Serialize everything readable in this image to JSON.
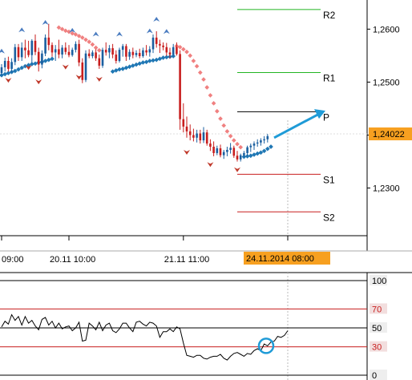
{
  "colors": {
    "pivot_resistance": "#22b522",
    "pivot_support": "#c81e1e",
    "pivot_p": "#000000",
    "bull_candle": "#1a5fa0",
    "bear_candle": "#c81e1e",
    "psar_down": "#f08080",
    "psar_up": "#1f77b4",
    "arrow": "#1f9bd7",
    "price_tag_bg": "#f7a020",
    "rsi_line": "#000000",
    "rsi_band": "#c81e1e",
    "axis": "#888888"
  },
  "chart_data": [
    {
      "type": "candlestick",
      "title": "",
      "ylim": [
        1.221,
        1.2655
      ],
      "y_ticks": [
        "1,2600",
        "1,2500",
        "1,2400",
        "1,2300"
      ],
      "y_tick_values": [
        1.26,
        1.25,
        1.24,
        1.23
      ],
      "x_ticks": [
        "09:00",
        "20.11 10:00",
        "21.11 11:00",
        "24.11.2014 08:00"
      ],
      "x_tick_index": [
        0,
        20,
        54,
        85
      ],
      "current_price": 1.24022,
      "current_price_label": "1,24022",
      "pivots": [
        {
          "label": "R2",
          "value": 1.2637
        },
        {
          "label": "R1",
          "value": 1.2518
        },
        {
          "label": "P",
          "value": 1.2444
        },
        {
          "label": "S1",
          "value": 1.2326
        },
        {
          "label": "S2",
          "value": 1.2255
        }
      ],
      "candles_ohlc": [
        [
          1.2517,
          1.2534,
          1.2512,
          1.2528
        ],
        [
          1.2528,
          1.2546,
          1.252,
          1.254
        ],
        [
          1.254,
          1.2548,
          1.252,
          1.2525
        ],
        [
          1.2525,
          1.2545,
          1.2518,
          1.2538
        ],
        [
          1.2538,
          1.2572,
          1.2532,
          1.2566
        ],
        [
          1.2566,
          1.2572,
          1.254,
          1.2547
        ],
        [
          1.2547,
          1.2575,
          1.254,
          1.2565
        ],
        [
          1.2565,
          1.258,
          1.2545,
          1.256
        ],
        [
          1.256,
          1.2578,
          1.2547,
          1.2551
        ],
        [
          1.2551,
          1.2581,
          1.2536,
          1.2578
        ],
        [
          1.2578,
          1.259,
          1.2551,
          1.2557
        ],
        [
          1.2557,
          1.2565,
          1.252,
          1.2533
        ],
        [
          1.2533,
          1.256,
          1.2526,
          1.2554
        ],
        [
          1.2554,
          1.259,
          1.2549,
          1.2584
        ],
        [
          1.2584,
          1.261,
          1.256,
          1.257
        ],
        [
          1.257,
          1.2575,
          1.2548,
          1.2556
        ],
        [
          1.2556,
          1.257,
          1.254,
          1.2562
        ],
        [
          1.2562,
          1.258,
          1.2545,
          1.2552
        ],
        [
          1.2552,
          1.257,
          1.2545,
          1.2565
        ],
        [
          1.2565,
          1.2575,
          1.2552,
          1.2557
        ],
        [
          1.2557,
          1.257,
          1.2547,
          1.2551
        ],
        [
          1.2551,
          1.2565,
          1.2548,
          1.2561
        ],
        [
          1.2561,
          1.2577,
          1.2556,
          1.2572
        ],
        [
          1.2572,
          1.258,
          1.253,
          1.2537
        ],
        [
          1.2537,
          1.2545,
          1.2498,
          1.2504
        ],
        [
          1.2504,
          1.256,
          1.25,
          1.2554
        ],
        [
          1.2554,
          1.2562,
          1.2545,
          1.2549
        ],
        [
          1.2549,
          1.256,
          1.2545,
          1.2556
        ],
        [
          1.2556,
          1.2562,
          1.254,
          1.2545
        ],
        [
          1.2545,
          1.2552,
          1.2525,
          1.2531
        ],
        [
          1.2531,
          1.2565,
          1.2527,
          1.2561
        ],
        [
          1.2561,
          1.2575,
          1.255,
          1.2556
        ],
        [
          1.2556,
          1.257,
          1.2545,
          1.2564
        ],
        [
          1.2564,
          1.2572,
          1.2545,
          1.2552
        ],
        [
          1.2552,
          1.256,
          1.2535,
          1.254
        ],
        [
          1.254,
          1.2565,
          1.2537,
          1.2561
        ],
        [
          1.2561,
          1.2572,
          1.2548,
          1.2568
        ],
        [
          1.2568,
          1.2572,
          1.254,
          1.2548
        ],
        [
          1.2548,
          1.2562,
          1.2542,
          1.2557
        ],
        [
          1.2557,
          1.2565,
          1.2545,
          1.2551
        ],
        [
          1.2551,
          1.256,
          1.2547,
          1.2555
        ],
        [
          1.2555,
          1.2563,
          1.2545,
          1.2549
        ],
        [
          1.2549,
          1.2565,
          1.2546,
          1.256
        ],
        [
          1.256,
          1.257,
          1.255,
          1.2556
        ],
        [
          1.2556,
          1.2568,
          1.2548,
          1.2562
        ],
        [
          1.2562,
          1.259,
          1.2555,
          1.2584
        ],
        [
          1.2584,
          1.2596,
          1.2565,
          1.2572
        ],
        [
          1.2572,
          1.258,
          1.2555,
          1.2569
        ],
        [
          1.2569,
          1.2575,
          1.256,
          1.2566
        ],
        [
          1.2566,
          1.2574,
          1.255,
          1.2556
        ],
        [
          1.2556,
          1.2565,
          1.2545,
          1.2552
        ],
        [
          1.2552,
          1.2572,
          1.2548,
          1.2566
        ],
        [
          1.2566,
          1.2575,
          1.255,
          1.2553
        ],
        [
          1.2553,
          1.256,
          1.241,
          1.243
        ],
        [
          1.243,
          1.246,
          1.2405,
          1.2416
        ],
        [
          1.2416,
          1.2435,
          1.2395,
          1.2407
        ],
        [
          1.2407,
          1.242,
          1.239,
          1.24
        ],
        [
          1.24,
          1.2412,
          1.2388,
          1.2395
        ],
        [
          1.2395,
          1.241,
          1.2386,
          1.2403
        ],
        [
          1.2403,
          1.241,
          1.2384,
          1.239
        ],
        [
          1.239,
          1.2415,
          1.2385,
          1.2405
        ],
        [
          1.2405,
          1.241,
          1.238,
          1.2384
        ],
        [
          1.2384,
          1.2392,
          1.237,
          1.2378
        ],
        [
          1.2378,
          1.2388,
          1.236,
          1.2366
        ],
        [
          1.2366,
          1.238,
          1.2362,
          1.2375
        ],
        [
          1.2375,
          1.2382,
          1.2358,
          1.2362
        ],
        [
          1.2362,
          1.2372,
          1.2355,
          1.2368
        ],
        [
          1.2368,
          1.2378,
          1.236,
          1.2372
        ],
        [
          1.2372,
          1.2385,
          1.2365,
          1.2376
        ],
        [
          1.2376,
          1.238,
          1.2357,
          1.2361
        ],
        [
          1.2361,
          1.237,
          1.235,
          1.2354
        ],
        [
          1.2354,
          1.2365,
          1.235,
          1.2362
        ],
        [
          1.2362,
          1.237,
          1.2358,
          1.2366
        ],
        [
          1.2366,
          1.238,
          1.236,
          1.2377
        ],
        [
          1.2377,
          1.2384,
          1.2368,
          1.238
        ],
        [
          1.238,
          1.2388,
          1.2372,
          1.2384
        ],
        [
          1.2384,
          1.2392,
          1.2378,
          1.2386
        ],
        [
          1.2386,
          1.2394,
          1.238,
          1.239
        ],
        [
          1.239,
          1.2398,
          1.2384,
          1.2392
        ],
        [
          1.2392,
          1.2402,
          1.2386,
          1.2398
        ]
      ],
      "psar_down": [
        [
          17,
          1.2603
        ],
        [
          18,
          1.26
        ],
        [
          19,
          1.2597
        ],
        [
          20,
          1.2595
        ],
        [
          21,
          1.2592
        ],
        [
          22,
          1.259
        ],
        [
          23,
          1.2587
        ],
        [
          24,
          1.2584
        ],
        [
          25,
          1.258
        ],
        [
          26,
          1.2576
        ],
        [
          27,
          1.2571
        ],
        [
          28,
          1.2565
        ],
        [
          29,
          1.256
        ],
        [
          52,
          1.2568
        ],
        [
          53,
          1.2566
        ],
        [
          54,
          1.2562
        ],
        [
          55,
          1.2557
        ],
        [
          56,
          1.255
        ],
        [
          57,
          1.254
        ],
        [
          58,
          1.253
        ],
        [
          59,
          1.2518
        ],
        [
          60,
          1.2505
        ],
        [
          61,
          1.249
        ],
        [
          62,
          1.2475
        ],
        [
          63,
          1.246
        ],
        [
          64,
          1.2445
        ],
        [
          65,
          1.2431
        ],
        [
          66,
          1.2418
        ],
        [
          67,
          1.2407
        ],
        [
          68,
          1.2398
        ],
        [
          69,
          1.239
        ],
        [
          70,
          1.2383
        ],
        [
          71,
          1.2377
        ]
      ],
      "psar_up": [
        [
          0,
          1.2513
        ],
        [
          1,
          1.2515
        ],
        [
          2,
          1.2517
        ],
        [
          3,
          1.2519
        ],
        [
          4,
          1.2521
        ],
        [
          5,
          1.2524
        ],
        [
          6,
          1.2527
        ],
        [
          7,
          1.253
        ],
        [
          8,
          1.2532
        ],
        [
          9,
          1.2534
        ],
        [
          10,
          1.2535
        ],
        [
          11,
          1.2537
        ],
        [
          12,
          1.2538
        ],
        [
          13,
          1.254
        ],
        [
          14,
          1.2542
        ],
        [
          15,
          1.2544
        ],
        [
          33,
          1.252
        ],
        [
          34,
          1.2522
        ],
        [
          35,
          1.2524
        ],
        [
          36,
          1.2525
        ],
        [
          37,
          1.2527
        ],
        [
          38,
          1.2529
        ],
        [
          39,
          1.2531
        ],
        [
          40,
          1.2533
        ],
        [
          41,
          1.2535
        ],
        [
          42,
          1.2537
        ],
        [
          43,
          1.2538
        ],
        [
          44,
          1.254
        ],
        [
          45,
          1.2541
        ],
        [
          46,
          1.2542
        ],
        [
          47,
          1.2544
        ],
        [
          48,
          1.2546
        ],
        [
          49,
          1.2547
        ],
        [
          50,
          1.2548
        ],
        [
          51,
          1.2549
        ],
        [
          72,
          1.2359
        ],
        [
          73,
          1.236
        ],
        [
          74,
          1.2361
        ],
        [
          75,
          1.2363
        ],
        [
          76,
          1.2365
        ],
        [
          77,
          1.2367
        ],
        [
          78,
          1.237
        ],
        [
          79,
          1.2374
        ],
        [
          80,
          1.2378
        ]
      ],
      "fractals_up": [
        [
          0,
          1.2548
        ],
        [
          6,
          1.2588
        ],
        [
          13,
          1.2602
        ],
        [
          21,
          1.2587
        ],
        [
          28,
          1.258
        ],
        [
          35,
          1.258
        ],
        [
          44,
          1.2586
        ],
        [
          46,
          1.2608
        ],
        [
          49,
          1.2585
        ]
      ],
      "fractals_down": [
        [
          2,
          1.2514
        ],
        [
          8,
          1.2538
        ],
        [
          11,
          1.2511
        ],
        [
          19,
          1.2539
        ],
        [
          23,
          1.252
        ],
        [
          29,
          1.2516
        ],
        [
          55,
          1.2378
        ],
        [
          62,
          1.2355
        ],
        [
          70,
          1.2345
        ]
      ],
      "forecast_arrow": [
        [
          80,
          1.2395
        ],
        [
          89,
          1.2446
        ]
      ]
    },
    {
      "type": "line",
      "title": "",
      "ylim": [
        0,
        100
      ],
      "y_ticks": [
        "100",
        "70",
        "50",
        "30",
        "0"
      ],
      "y_tick_values": [
        100,
        70,
        50,
        30,
        0
      ],
      "bands": [
        70,
        30
      ],
      "series": [
        {
          "values": [
            51,
            57,
            54,
            64,
            58,
            62,
            53,
            62,
            55,
            58,
            52,
            48,
            59,
            61,
            53,
            57,
            50,
            55,
            49,
            51,
            52,
            47,
            50,
            56,
            36,
            37,
            55,
            52,
            48,
            56,
            47,
            53,
            55,
            47,
            45,
            49,
            55,
            55,
            50,
            46,
            56,
            57,
            54,
            52,
            56,
            55,
            52,
            40,
            46,
            46,
            49,
            46,
            51,
            49,
            34,
            21,
            20,
            19,
            21,
            21,
            18,
            17,
            19,
            20,
            20,
            22,
            18,
            16,
            20,
            23,
            24,
            22,
            20,
            23,
            22,
            26,
            28,
            26,
            33,
            31,
            35,
            36,
            41,
            40,
            42,
            47
          ]
        }
      ],
      "highlight_circle": [
        80,
        31
      ]
    }
  ]
}
